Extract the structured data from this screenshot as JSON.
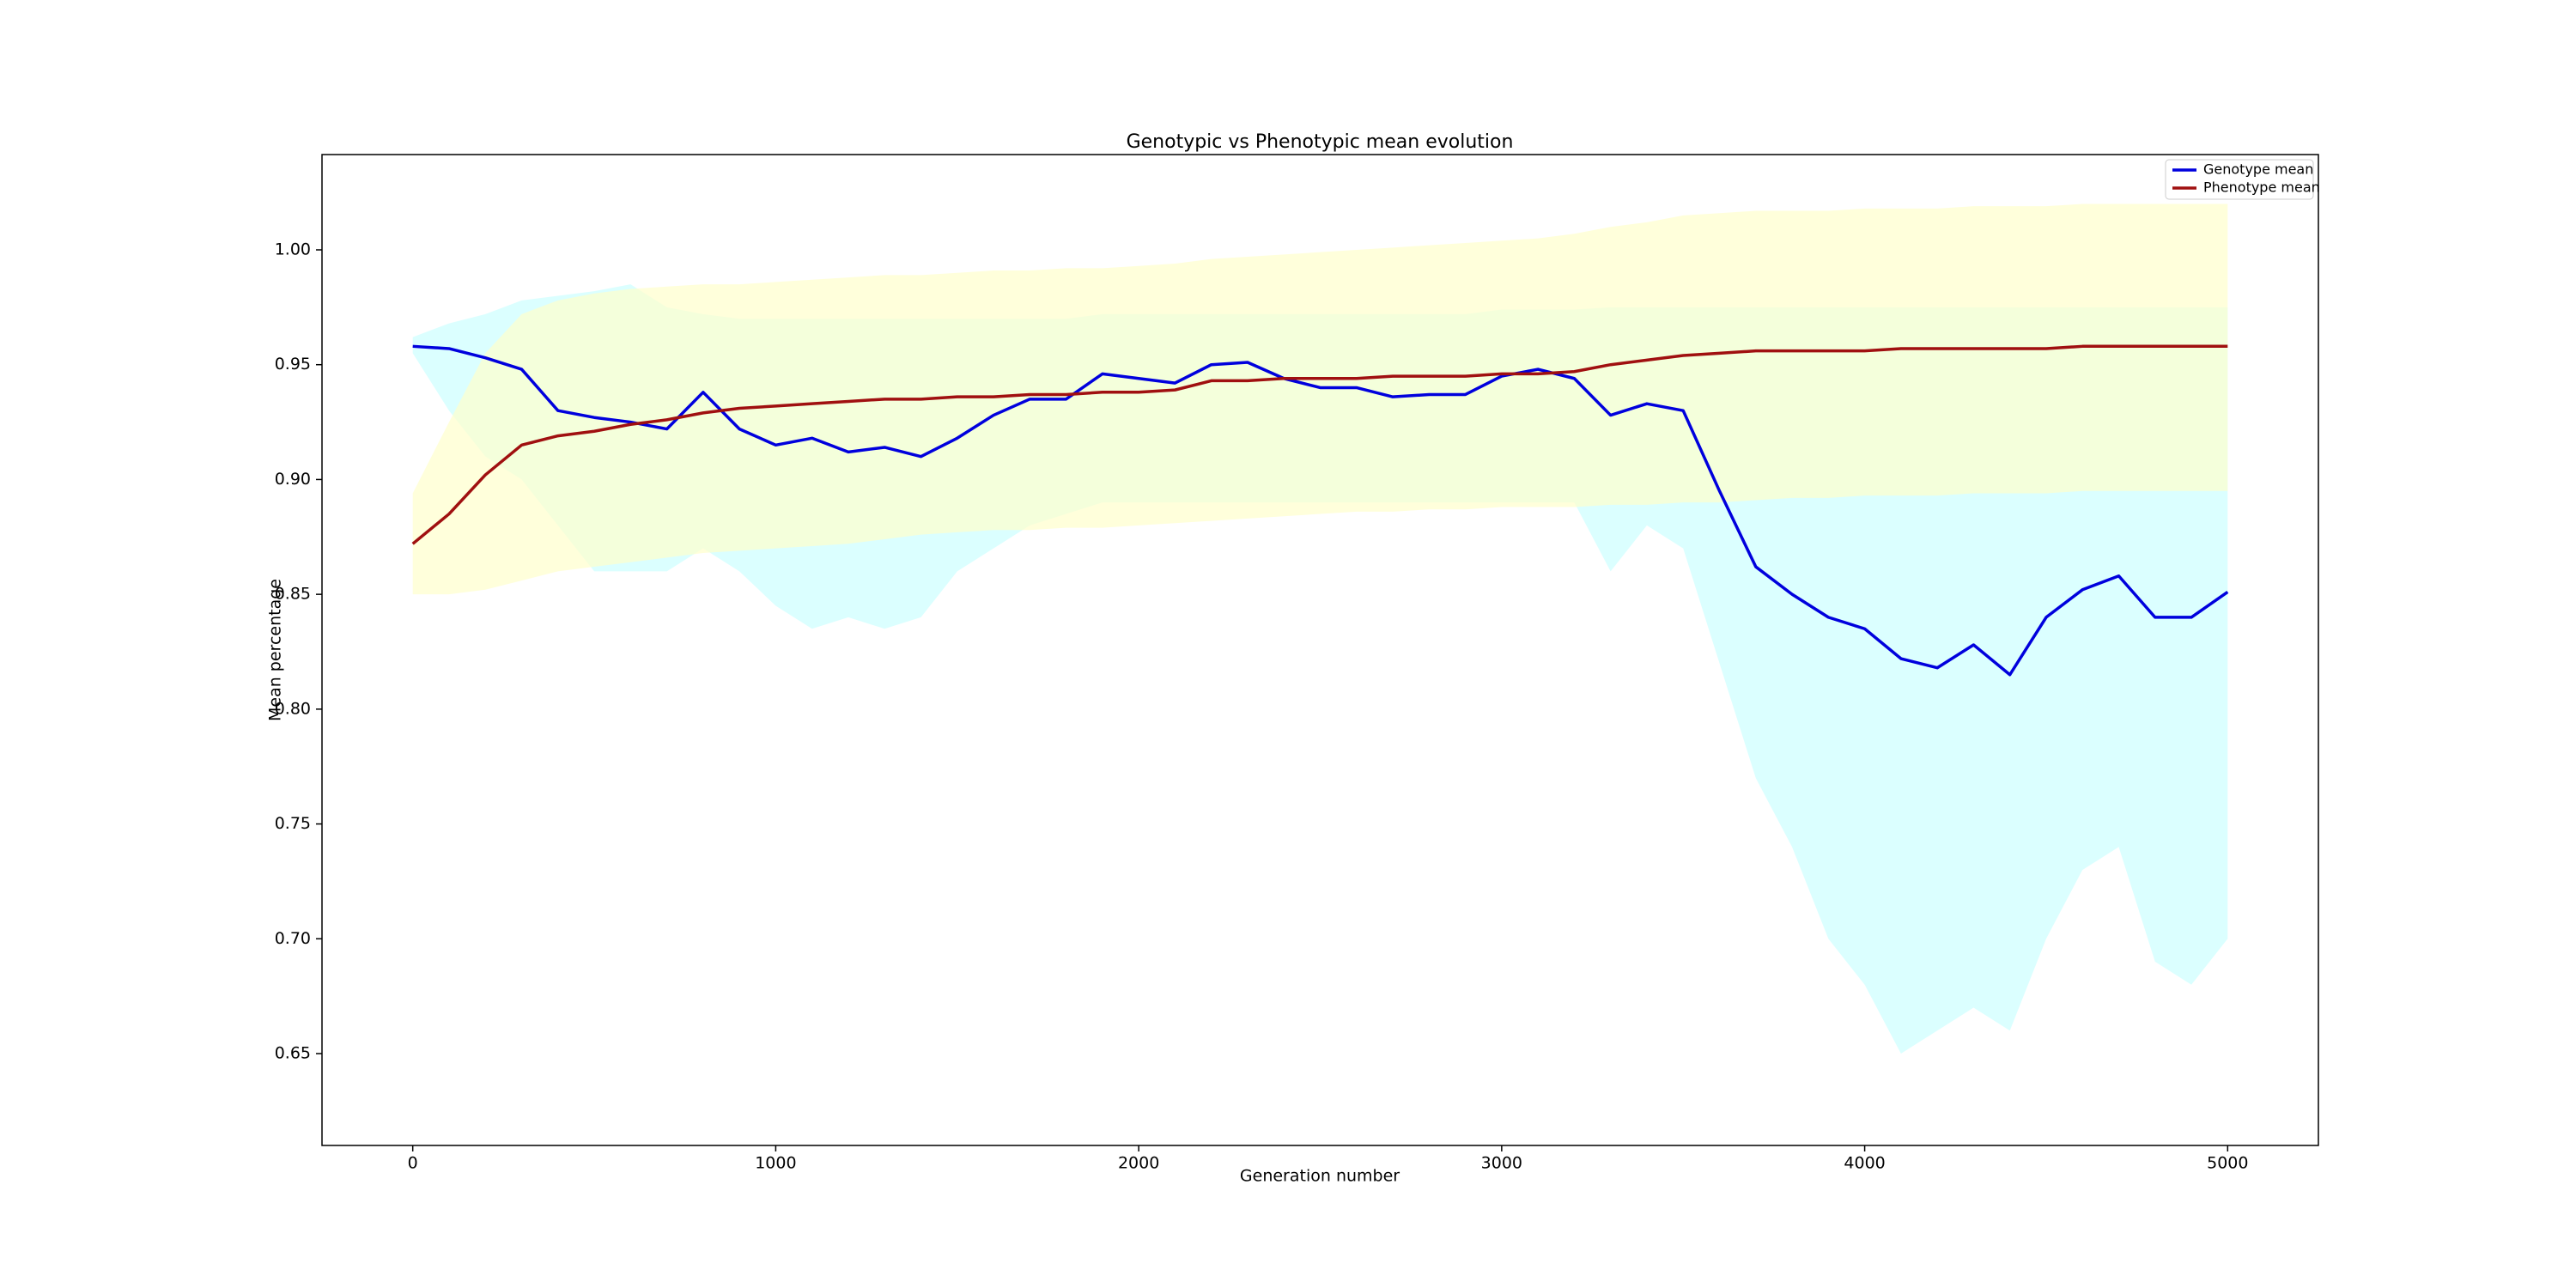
{
  "chart_data": {
    "type": "line",
    "title": "Genotypic vs Phenotypic mean evolution",
    "x_label": "Generation number",
    "y_label": "Mean percentage",
    "x": [
      0,
      100,
      200,
      300,
      400,
      500,
      600,
      700,
      800,
      900,
      1000,
      1100,
      1200,
      1300,
      1400,
      1500,
      1600,
      1700,
      1800,
      1900,
      2000,
      2100,
      2200,
      2300,
      2400,
      2500,
      2600,
      2700,
      2800,
      2900,
      3000,
      3100,
      3200,
      3300,
      3400,
      3500,
      3600,
      3700,
      3800,
      3900,
      4000,
      4100,
      4200,
      4300,
      4400,
      4500,
      4600,
      4700,
      4800,
      4900,
      5000
    ],
    "series": [
      {
        "name": "Genotype mean",
        "color": "#0000dd",
        "values": [
          0.958,
          0.957,
          0.953,
          0.948,
          0.93,
          0.927,
          0.925,
          0.922,
          0.938,
          0.922,
          0.915,
          0.918,
          0.912,
          0.914,
          0.91,
          0.918,
          0.928,
          0.935,
          0.935,
          0.946,
          0.944,
          0.942,
          0.95,
          0.951,
          0.944,
          0.94,
          0.94,
          0.936,
          0.937,
          0.937,
          0.945,
          0.948,
          0.944,
          0.928,
          0.933,
          0.93,
          0.895,
          0.862,
          0.85,
          0.84,
          0.835,
          0.822,
          0.818,
          0.828,
          0.815,
          0.84,
          0.852,
          0.858,
          0.84,
          0.84,
          0.851
        ]
      },
      {
        "name": "Phenotype mean",
        "color": "#a01010",
        "values": [
          0.872,
          0.885,
          0.902,
          0.915,
          0.919,
          0.921,
          0.924,
          0.926,
          0.929,
          0.931,
          0.932,
          0.933,
          0.934,
          0.935,
          0.935,
          0.936,
          0.936,
          0.937,
          0.937,
          0.938,
          0.938,
          0.939,
          0.943,
          0.943,
          0.944,
          0.944,
          0.944,
          0.945,
          0.945,
          0.945,
          0.946,
          0.946,
          0.947,
          0.95,
          0.952,
          0.954,
          0.955,
          0.956,
          0.956,
          0.956,
          0.956,
          0.957,
          0.957,
          0.957,
          0.957,
          0.957,
          0.958,
          0.958,
          0.958,
          0.958,
          0.958
        ]
      }
    ],
    "bands": [
      {
        "color": "#ccffff",
        "lower": [
          0.955,
          0.93,
          0.91,
          0.9,
          0.88,
          0.86,
          0.86,
          0.86,
          0.87,
          0.86,
          0.845,
          0.835,
          0.84,
          0.835,
          0.84,
          0.86,
          0.87,
          0.88,
          0.885,
          0.89,
          0.89,
          0.89,
          0.89,
          0.89,
          0.89,
          0.89,
          0.89,
          0.89,
          0.89,
          0.89,
          0.89,
          0.89,
          0.89,
          0.86,
          0.88,
          0.87,
          0.82,
          0.77,
          0.74,
          0.7,
          0.68,
          0.65,
          0.66,
          0.67,
          0.66,
          0.7,
          0.73,
          0.74,
          0.69,
          0.68,
          0.7
        ],
        "upper": [
          0.962,
          0.968,
          0.972,
          0.978,
          0.98,
          0.982,
          0.985,
          0.975,
          0.972,
          0.97,
          0.97,
          0.97,
          0.97,
          0.97,
          0.97,
          0.97,
          0.97,
          0.97,
          0.97,
          0.972,
          0.972,
          0.972,
          0.972,
          0.972,
          0.972,
          0.972,
          0.972,
          0.972,
          0.972,
          0.972,
          0.974,
          0.974,
          0.974,
          0.975,
          0.975,
          0.975,
          0.975,
          0.975,
          0.975,
          0.975,
          0.975,
          0.975,
          0.975,
          0.975,
          0.975,
          0.975,
          0.975,
          0.975,
          0.975,
          0.975,
          0.975
        ]
      },
      {
        "color": "#ffffcc",
        "lower": [
          0.85,
          0.85,
          0.852,
          0.856,
          0.86,
          0.862,
          0.864,
          0.866,
          0.868,
          0.869,
          0.87,
          0.871,
          0.872,
          0.874,
          0.876,
          0.877,
          0.878,
          0.878,
          0.879,
          0.879,
          0.88,
          0.881,
          0.882,
          0.883,
          0.884,
          0.885,
          0.886,
          0.886,
          0.887,
          0.887,
          0.888,
          0.888,
          0.888,
          0.889,
          0.889,
          0.89,
          0.89,
          0.891,
          0.892,
          0.892,
          0.893,
          0.893,
          0.893,
          0.894,
          0.894,
          0.894,
          0.895,
          0.895,
          0.895,
          0.895,
          0.895
        ],
        "upper": [
          0.894,
          0.925,
          0.955,
          0.972,
          0.978,
          0.981,
          0.983,
          0.984,
          0.985,
          0.985,
          0.986,
          0.987,
          0.988,
          0.989,
          0.989,
          0.99,
          0.991,
          0.991,
          0.992,
          0.992,
          0.993,
          0.994,
          0.996,
          0.997,
          0.998,
          0.999,
          1.0,
          1.001,
          1.002,
          1.003,
          1.004,
          1.005,
          1.007,
          1.01,
          1.012,
          1.015,
          1.016,
          1.017,
          1.017,
          1.017,
          1.018,
          1.018,
          1.018,
          1.019,
          1.019,
          1.019,
          1.02,
          1.02,
          1.02,
          1.02,
          1.02
        ]
      }
    ],
    "xlim": [
      -250,
      5250
    ],
    "ylim": [
      0.61,
      1.0415
    ],
    "xticks": [
      0,
      1000,
      2000,
      3000,
      4000,
      5000
    ],
    "yticks": [
      0.65,
      {
        "value": 0.7,
        "label": "0.70"
      },
      0.75,
      {
        "value": 0.8,
        "label": "0.80"
      },
      0.85,
      {
        "value": 0.9,
        "label": "0.90"
      },
      0.95,
      {
        "value": 1.0,
        "label": "1.00"
      }
    ],
    "grid": false,
    "legend": "upper right"
  }
}
